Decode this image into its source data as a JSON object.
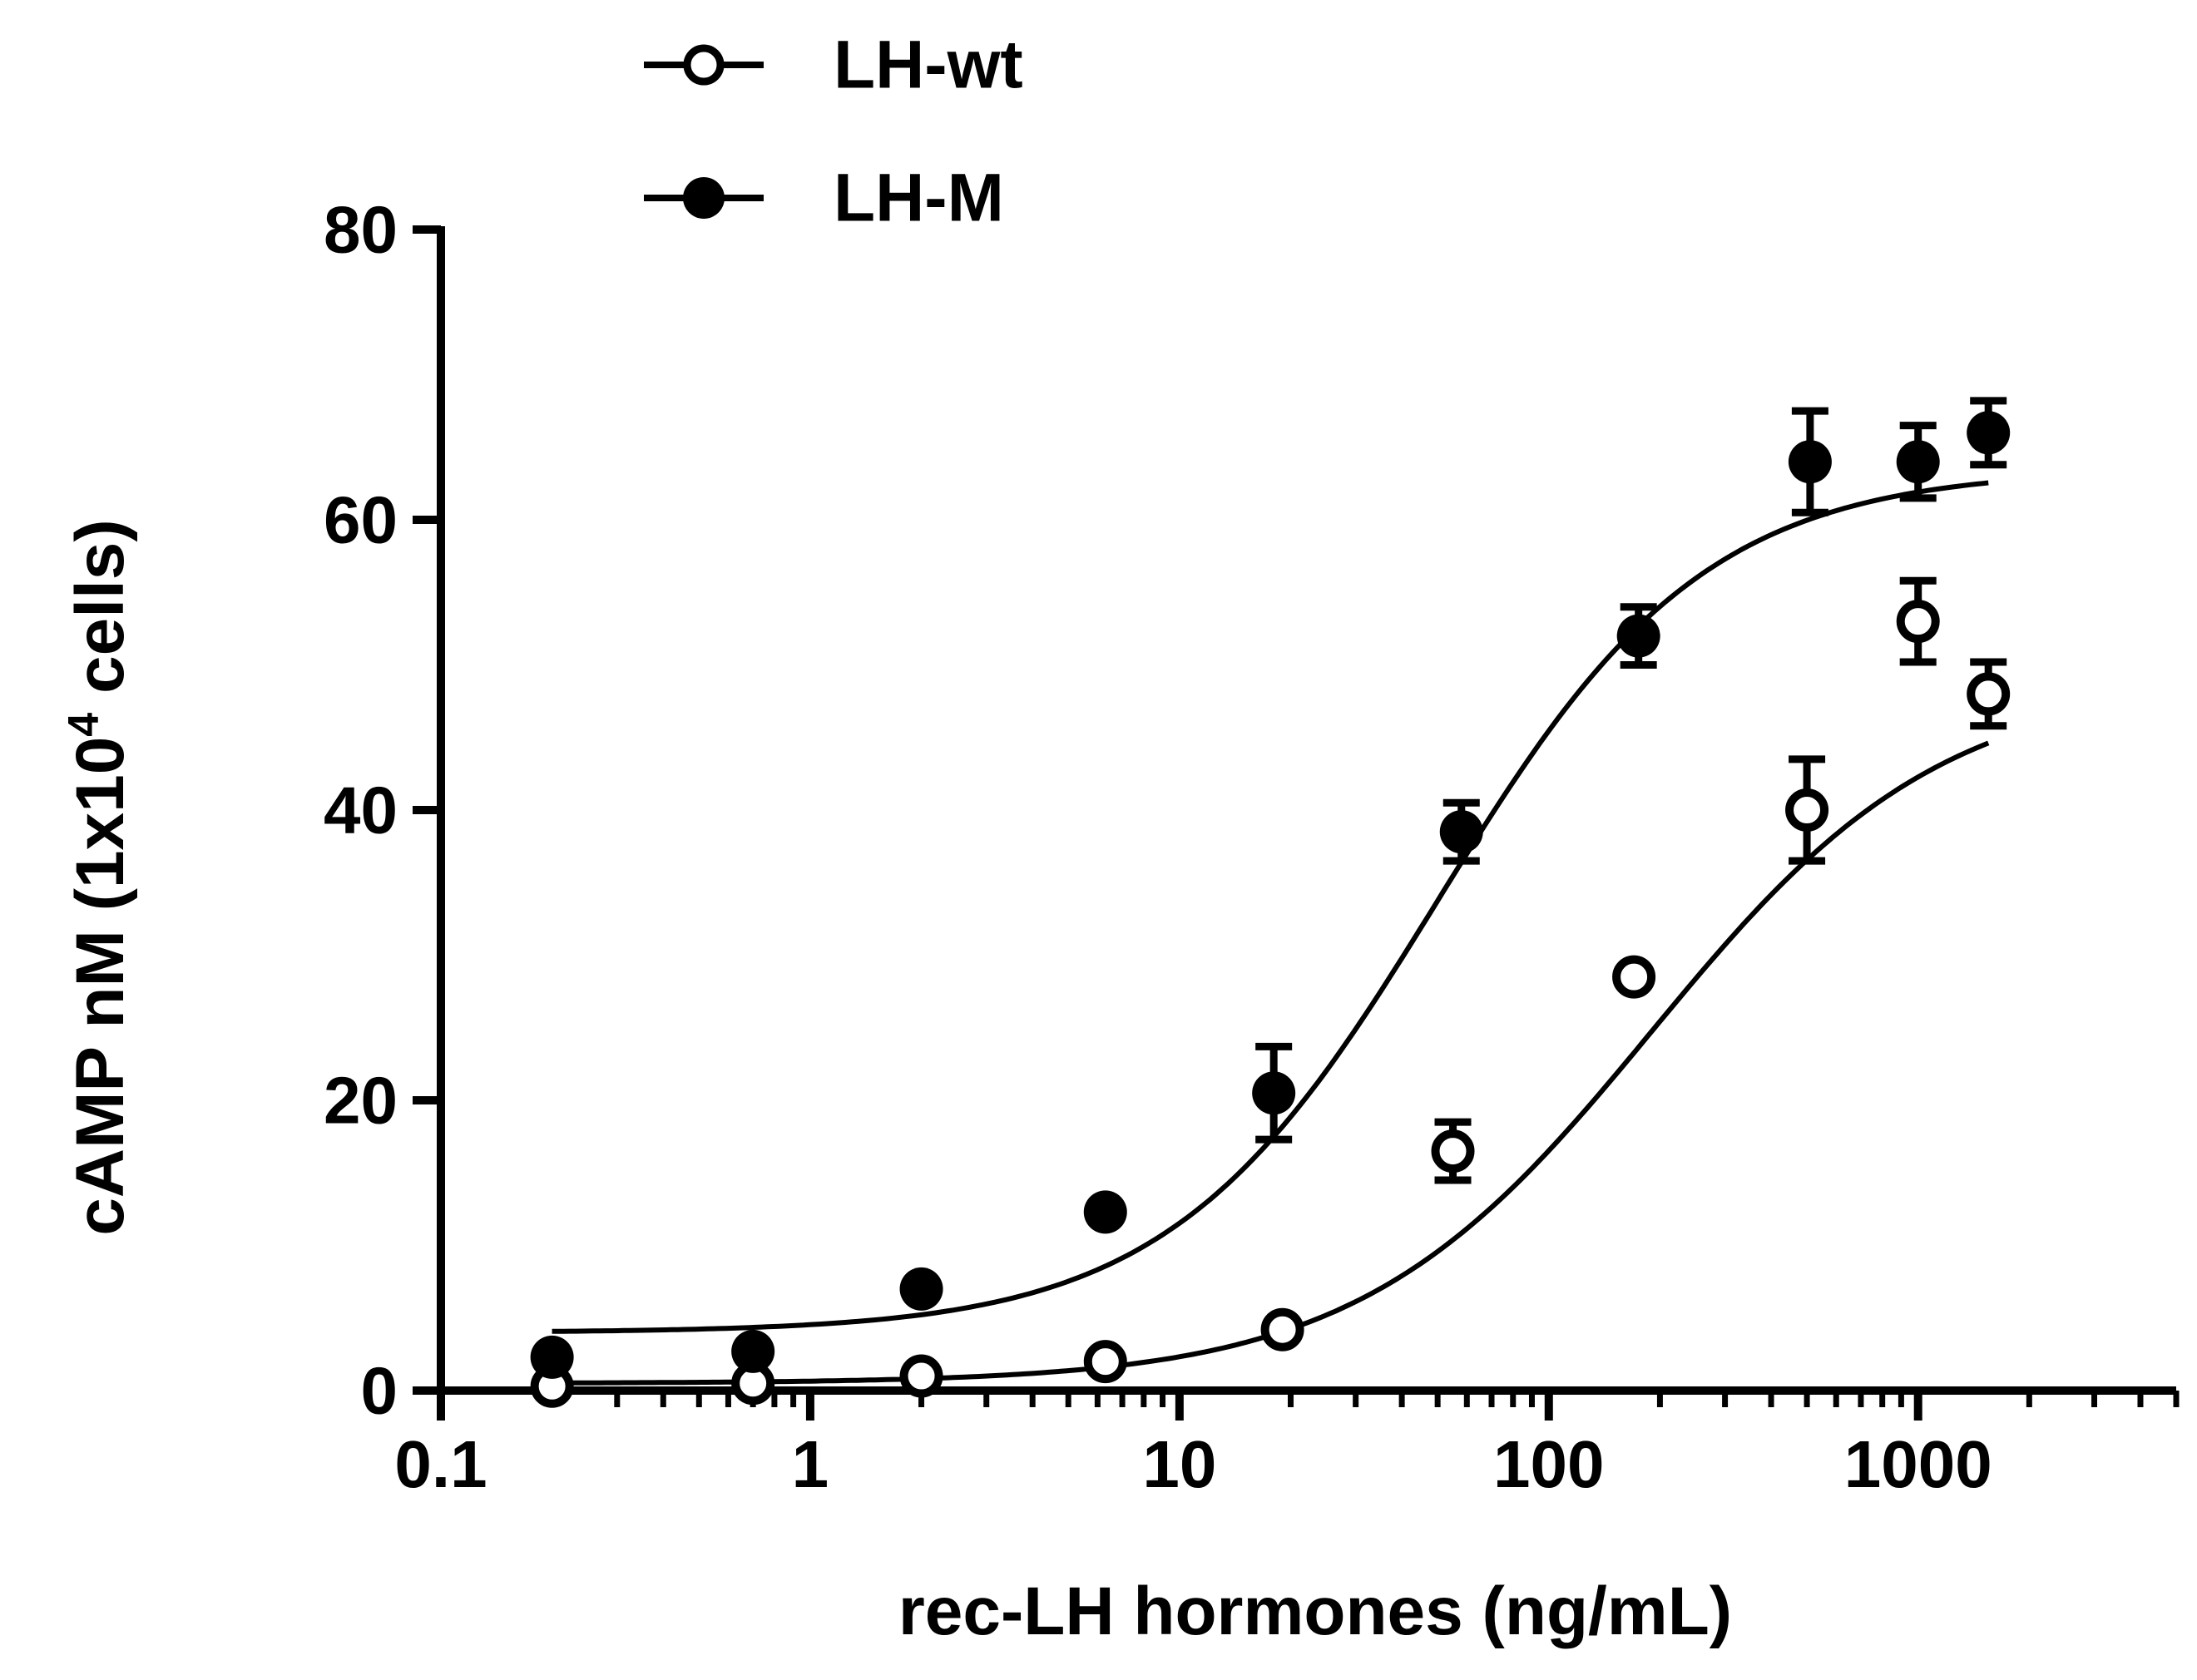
{
  "chart_data": {
    "type": "scatter",
    "x_scale": "log",
    "xlabel": "rec-LH hormones (ng/mL)",
    "ylabel": {
      "main": "cAMP nM (1x10",
      "superscript": "4",
      "tail": " cells)"
    },
    "xlim": [
      0.1,
      5000
    ],
    "ylim": [
      0,
      80
    ],
    "x_ticks": [
      0.1,
      1,
      10,
      100,
      1000
    ],
    "x_tick_labels": [
      "0.1",
      "1",
      "10",
      "100",
      "1000"
    ],
    "y_ticks": [
      0,
      20,
      40,
      60,
      80
    ],
    "y_tick_labels": [
      "0",
      "20",
      "40",
      "60",
      "80"
    ],
    "grid": false,
    "legend_position": "top-left",
    "colors": {
      "line": "#000000",
      "marker": "#000000",
      "background": "#ffffff"
    },
    "series": [
      {
        "name": "LH-wt",
        "marker": "open-circle",
        "x": [
          0.2,
          0.7,
          2,
          6.3,
          19,
          55,
          170,
          500,
          1000,
          1550
        ],
        "y": [
          0.3,
          0.5,
          1.0,
          2.0,
          4.2,
          16.5,
          28.5,
          40.0,
          53.0,
          48.0
        ],
        "err": [
          0,
          0,
          0,
          0,
          0,
          2.0,
          0,
          3.5,
          2.8,
          2.2
        ],
        "fit": {
          "model": "sigmoid-log",
          "bottom": 0.5,
          "top": 49.0,
          "ec50": 190,
          "hill": 1.1
        }
      },
      {
        "name": "LH-M",
        "marker": "filled-circle",
        "x": [
          0.2,
          0.7,
          2,
          6.3,
          18,
          58,
          175,
          510,
          1000,
          1550
        ],
        "y": [
          2.3,
          2.7,
          7.0,
          12.3,
          20.5,
          38.5,
          52.0,
          64.0,
          64.0,
          66.0
        ],
        "err": [
          0,
          0,
          0,
          0,
          3.2,
          2.0,
          2.0,
          3.5,
          2.5,
          2.2
        ],
        "fit": {
          "model": "sigmoid-log",
          "bottom": 4.0,
          "top": 63.5,
          "ec50": 50,
          "hill": 1.2
        }
      }
    ]
  }
}
